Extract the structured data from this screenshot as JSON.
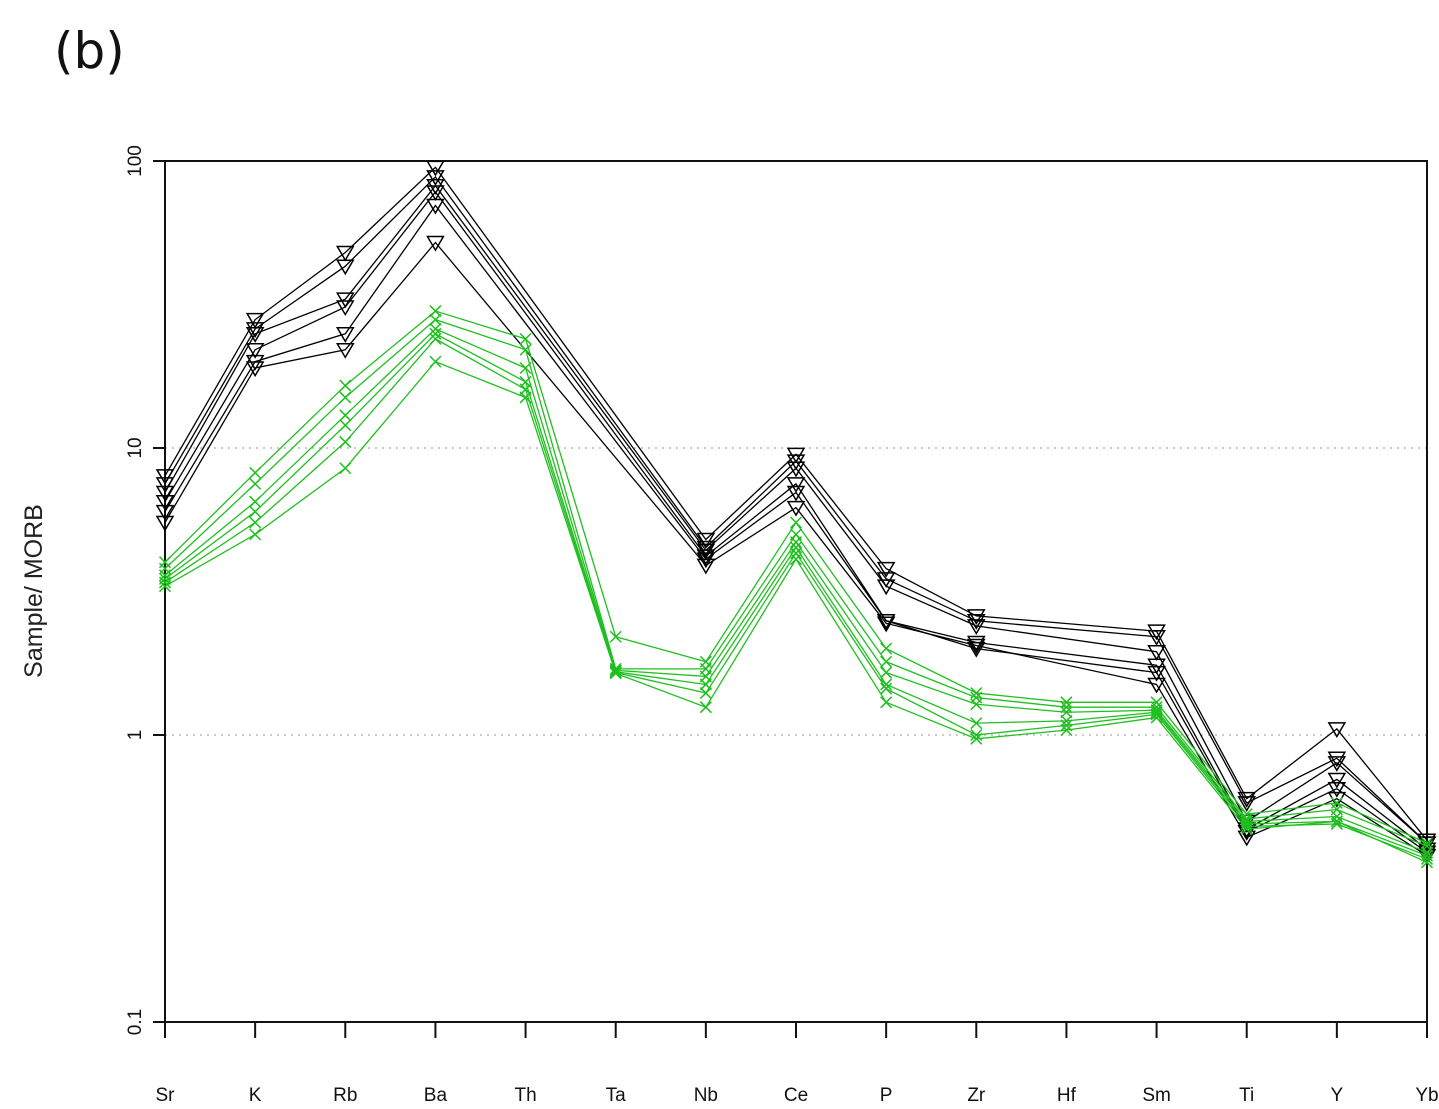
{
  "panel_label": "(b)",
  "colors": {
    "black_series": "#000000",
    "green_series": "#1fbf1f",
    "grid": "#bbbbbb"
  },
  "chart_data": {
    "type": "line",
    "title": "",
    "xlabel": "",
    "ylabel": "Sample/ MORB",
    "yscale": "log",
    "ylim": [
      0.1,
      100
    ],
    "yticks": [
      "0.1",
      "1",
      "10",
      "100"
    ],
    "grid": "dotted horizontal at 1 and 10",
    "categories": [
      "Sr",
      "K",
      "Rb",
      "Ba",
      "Th",
      "Ta",
      "Nb",
      "Ce",
      "P",
      "Zr",
      "Hf",
      "Sm",
      "Ti",
      "Y",
      "Yb"
    ],
    "series": [
      {
        "group": "black",
        "marker": "triangle-down",
        "values": [
          8.0,
          28.0,
          48.0,
          95.0,
          null,
          null,
          4.8,
          9.5,
          3.8,
          2.6,
          null,
          2.3,
          0.6,
          1.05,
          0.43
        ]
      },
      {
        "group": "black",
        "marker": "triangle-down",
        "values": [
          7.5,
          26.0,
          43.0,
          88.0,
          null,
          null,
          4.5,
          9.0,
          3.5,
          2.5,
          null,
          2.2,
          0.58,
          0.83,
          0.42
        ]
      },
      {
        "group": "black",
        "marker": "triangle-down",
        "values": [
          7.0,
          25.0,
          33.0,
          82.0,
          null,
          null,
          4.4,
          8.5,
          3.3,
          2.4,
          null,
          1.95,
          0.5,
          0.8,
          0.42
        ]
      },
      {
        "group": "black",
        "marker": "triangle-down",
        "values": [
          6.5,
          22.0,
          31.0,
          78.0,
          null,
          null,
          4.2,
          7.5,
          2.5,
          2.1,
          null,
          1.75,
          0.47,
          0.7,
          0.4
        ]
      },
      {
        "group": "black",
        "marker": "triangle-down",
        "values": [
          6.0,
          20.0,
          25.0,
          70.0,
          null,
          null,
          4.1,
          7.0,
          2.5,
          2.0,
          null,
          1.65,
          0.46,
          0.65,
          0.39
        ]
      },
      {
        "group": "black",
        "marker": "triangle-down",
        "values": [
          5.5,
          19.0,
          22.0,
          52.0,
          null,
          null,
          3.9,
          6.2,
          2.45,
          2.05,
          null,
          1.5,
          0.44,
          0.6,
          0.38
        ]
      },
      {
        "group": "green",
        "marker": "x",
        "values": [
          4.0,
          8.2,
          16.5,
          30.0,
          24.0,
          2.2,
          1.8,
          5.5,
          2.0,
          1.4,
          1.3,
          1.3,
          0.53,
          0.58,
          0.42
        ]
      },
      {
        "group": "green",
        "marker": "x",
        "values": [
          3.8,
          7.5,
          15.0,
          28.0,
          22.0,
          1.7,
          1.7,
          5.0,
          1.8,
          1.35,
          1.25,
          1.25,
          0.51,
          0.55,
          0.41
        ]
      },
      {
        "group": "green",
        "marker": "x",
        "values": [
          3.6,
          6.5,
          13.0,
          26.0,
          19.0,
          1.68,
          1.6,
          4.7,
          1.65,
          1.28,
          1.2,
          1.22,
          0.5,
          0.52,
          0.39
        ]
      },
      {
        "group": "green",
        "marker": "x",
        "values": [
          3.5,
          6.0,
          12.0,
          25.0,
          17.0,
          1.66,
          1.5,
          4.5,
          1.5,
          1.1,
          1.12,
          1.2,
          0.49,
          0.5,
          0.38
        ]
      },
      {
        "group": "green",
        "marker": "x",
        "values": [
          3.4,
          5.5,
          10.5,
          24.0,
          16.0,
          1.65,
          1.4,
          4.3,
          1.45,
          1.0,
          1.08,
          1.18,
          0.48,
          0.49,
          0.37
        ]
      },
      {
        "group": "green",
        "marker": "x",
        "values": [
          3.3,
          5.0,
          8.5,
          20.0,
          15.0,
          1.64,
          1.25,
          4.1,
          1.3,
          0.97,
          1.04,
          1.15,
          0.47,
          0.5,
          0.36
        ]
      }
    ]
  }
}
